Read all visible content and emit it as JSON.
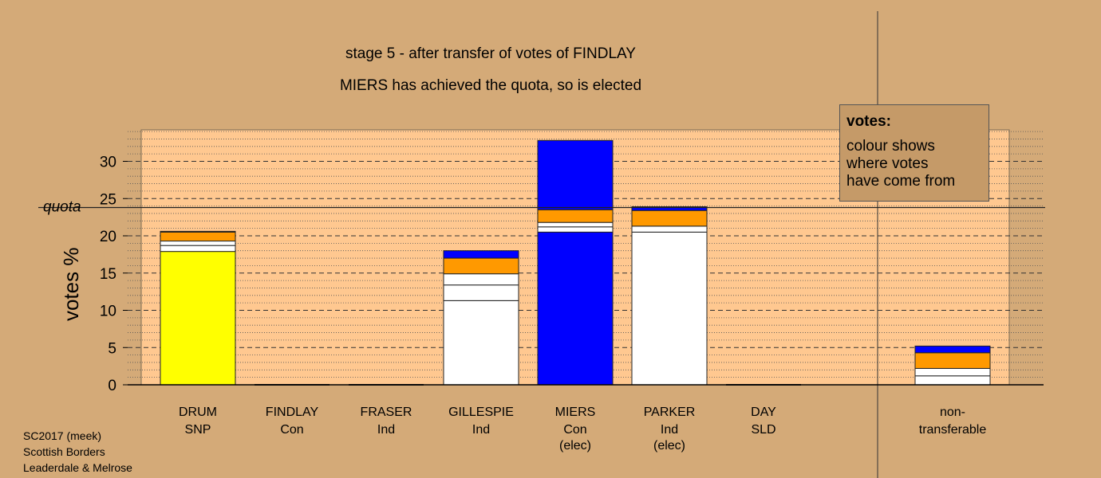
{
  "chart_data": {
    "type": "bar",
    "stacked": true,
    "title": "stage 5 - after transfer of votes of FINDLAY",
    "subtitle": "MIERS has achieved the quota, so is elected",
    "ylabel": "votes %",
    "ylim": [
      0,
      34
    ],
    "yticks": [
      0,
      5,
      10,
      15,
      20,
      25,
      30
    ],
    "quota": 23.8,
    "quota_label": "quota",
    "candidates": [
      {
        "name": "DRUM",
        "party": "SNP",
        "status": "",
        "segments": [
          {
            "value": 17.9,
            "color": "#ffff00"
          },
          {
            "value": 0.8,
            "color": "#ffffff"
          },
          {
            "value": 0.6,
            "color": "#ffffff"
          },
          {
            "value": 1.2,
            "color": "#ff9900"
          },
          {
            "value": 0.1,
            "color": "#0000ff"
          }
        ]
      },
      {
        "name": "FINDLAY",
        "party": "Con",
        "status": "",
        "segments": []
      },
      {
        "name": "FRASER",
        "party": "Ind",
        "status": "",
        "segments": []
      },
      {
        "name": "GILLESPIE",
        "party": "Ind",
        "status": "",
        "segments": [
          {
            "value": 11.3,
            "color": "#ffffff"
          },
          {
            "value": 2.1,
            "color": "#ffffff"
          },
          {
            "value": 1.5,
            "color": "#ffffff"
          },
          {
            "value": 2.1,
            "color": "#ff9900"
          },
          {
            "value": 1.0,
            "color": "#0000ff"
          }
        ]
      },
      {
        "name": "MIERS",
        "party": "Con",
        "status": "(elec)",
        "segments": [
          {
            "value": 20.5,
            "color": "#0000ff"
          },
          {
            "value": 0.7,
            "color": "#ffffff"
          },
          {
            "value": 0.6,
            "color": "#ffffff"
          },
          {
            "value": 1.7,
            "color": "#ff9900"
          },
          {
            "value": 9.3,
            "color": "#0000ff"
          }
        ]
      },
      {
        "name": "PARKER",
        "party": "Ind",
        "status": "(elec)",
        "segments": [
          {
            "value": 20.5,
            "color": "#ffffff"
          },
          {
            "value": 0.8,
            "color": "#ffffff"
          },
          {
            "value": 2.1,
            "color": "#ff9900"
          },
          {
            "value": 0.5,
            "color": "#0000ff"
          }
        ]
      },
      {
        "name": "DAY",
        "party": "SLD",
        "status": "",
        "segments": []
      }
    ],
    "nontransferable": {
      "label_line1": "non-",
      "label_line2": "transferable",
      "segments": [
        {
          "value": 1.2,
          "color": "#ffffff"
        },
        {
          "value": 1.0,
          "color": "#ffffff"
        },
        {
          "value": 2.1,
          "color": "#ff9900"
        },
        {
          "value": 0.9,
          "color": "#0000ff"
        }
      ]
    },
    "legend_title": "votes:",
    "legend_text": [
      "colour shows",
      "where votes",
      "have come from"
    ]
  },
  "footer": [
    "SC2017 (meek)",
    "Scottish Borders",
    "Leaderdale & Melrose"
  ]
}
